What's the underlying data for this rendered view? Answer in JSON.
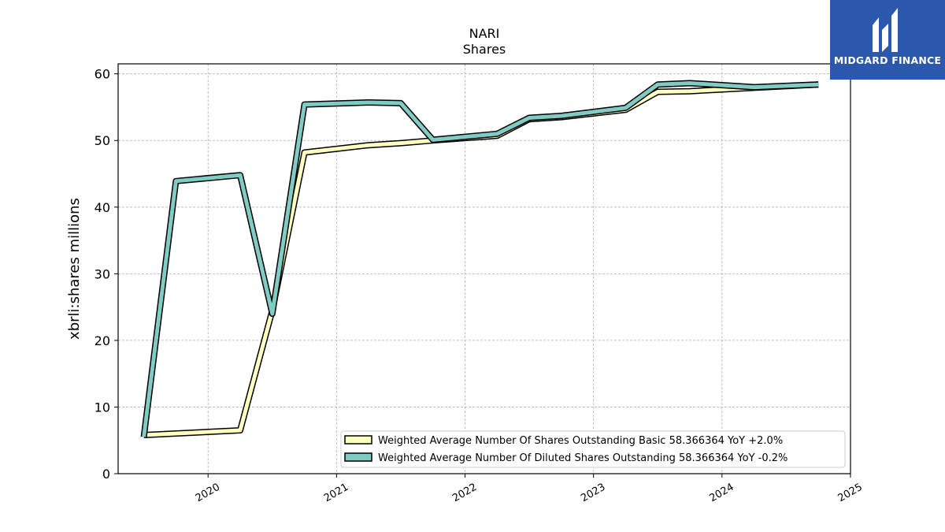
{
  "brand": {
    "name": "MIDGARD FINANCE",
    "bg_color": "#2b57ac",
    "icon": "midgard-logo-icon"
  },
  "chart_data": {
    "type": "line",
    "title": "NARI",
    "subtitle": "Shares",
    "xlabel": "",
    "ylabel": "xbrli:shares millions",
    "xlim": [
      2019.3,
      2025.0
    ],
    "ylim": [
      0,
      61.5
    ],
    "x_ticks": [
      "2020",
      "2021",
      "2022",
      "2023",
      "2024",
      "2025"
    ],
    "x_tick_values": [
      2020,
      2021,
      2022,
      2023,
      2024,
      2025
    ],
    "y_ticks": [
      "0",
      "10",
      "20",
      "30",
      "40",
      "50",
      "60"
    ],
    "y_tick_values": [
      0,
      10,
      20,
      30,
      40,
      50,
      60
    ],
    "grid": true,
    "legend_position": "bottom-right",
    "series": [
      {
        "name": "Weighted Average Number Of Shares Outstanding Basic  58.366364 YoY +2.0%",
        "color": "#ffffbf",
        "x": [
          2019.5,
          2020.25,
          2020.5,
          2020.75,
          2021.25,
          2021.5,
          2021.75,
          2022.25,
          2022.5,
          2022.75,
          2023.25,
          2023.5,
          2023.75,
          2024.25,
          2024.75
        ],
        "values": [
          5.8,
          6.5,
          24.5,
          48.2,
          49.3,
          49.6,
          50.0,
          50.7,
          53.2,
          53.5,
          54.6,
          57.3,
          57.4,
          57.9,
          58.4
        ]
      },
      {
        "name": "Weighted Average Number Of Diluted Shares Outstanding  58.366364 YoY -0.2%",
        "color": "#80cbc4",
        "x": [
          2019.5,
          2019.75,
          2020.25,
          2020.5,
          2020.75,
          2021.25,
          2021.5,
          2021.75,
          2022.25,
          2022.5,
          2022.75,
          2023.25,
          2023.5,
          2023.75,
          2024.25,
          2024.75
        ],
        "values": [
          5.5,
          43.9,
          44.8,
          24.0,
          55.4,
          55.7,
          55.6,
          50.1,
          51.0,
          53.4,
          53.7,
          54.9,
          58.4,
          58.6,
          58.0,
          58.4
        ]
      }
    ]
  }
}
